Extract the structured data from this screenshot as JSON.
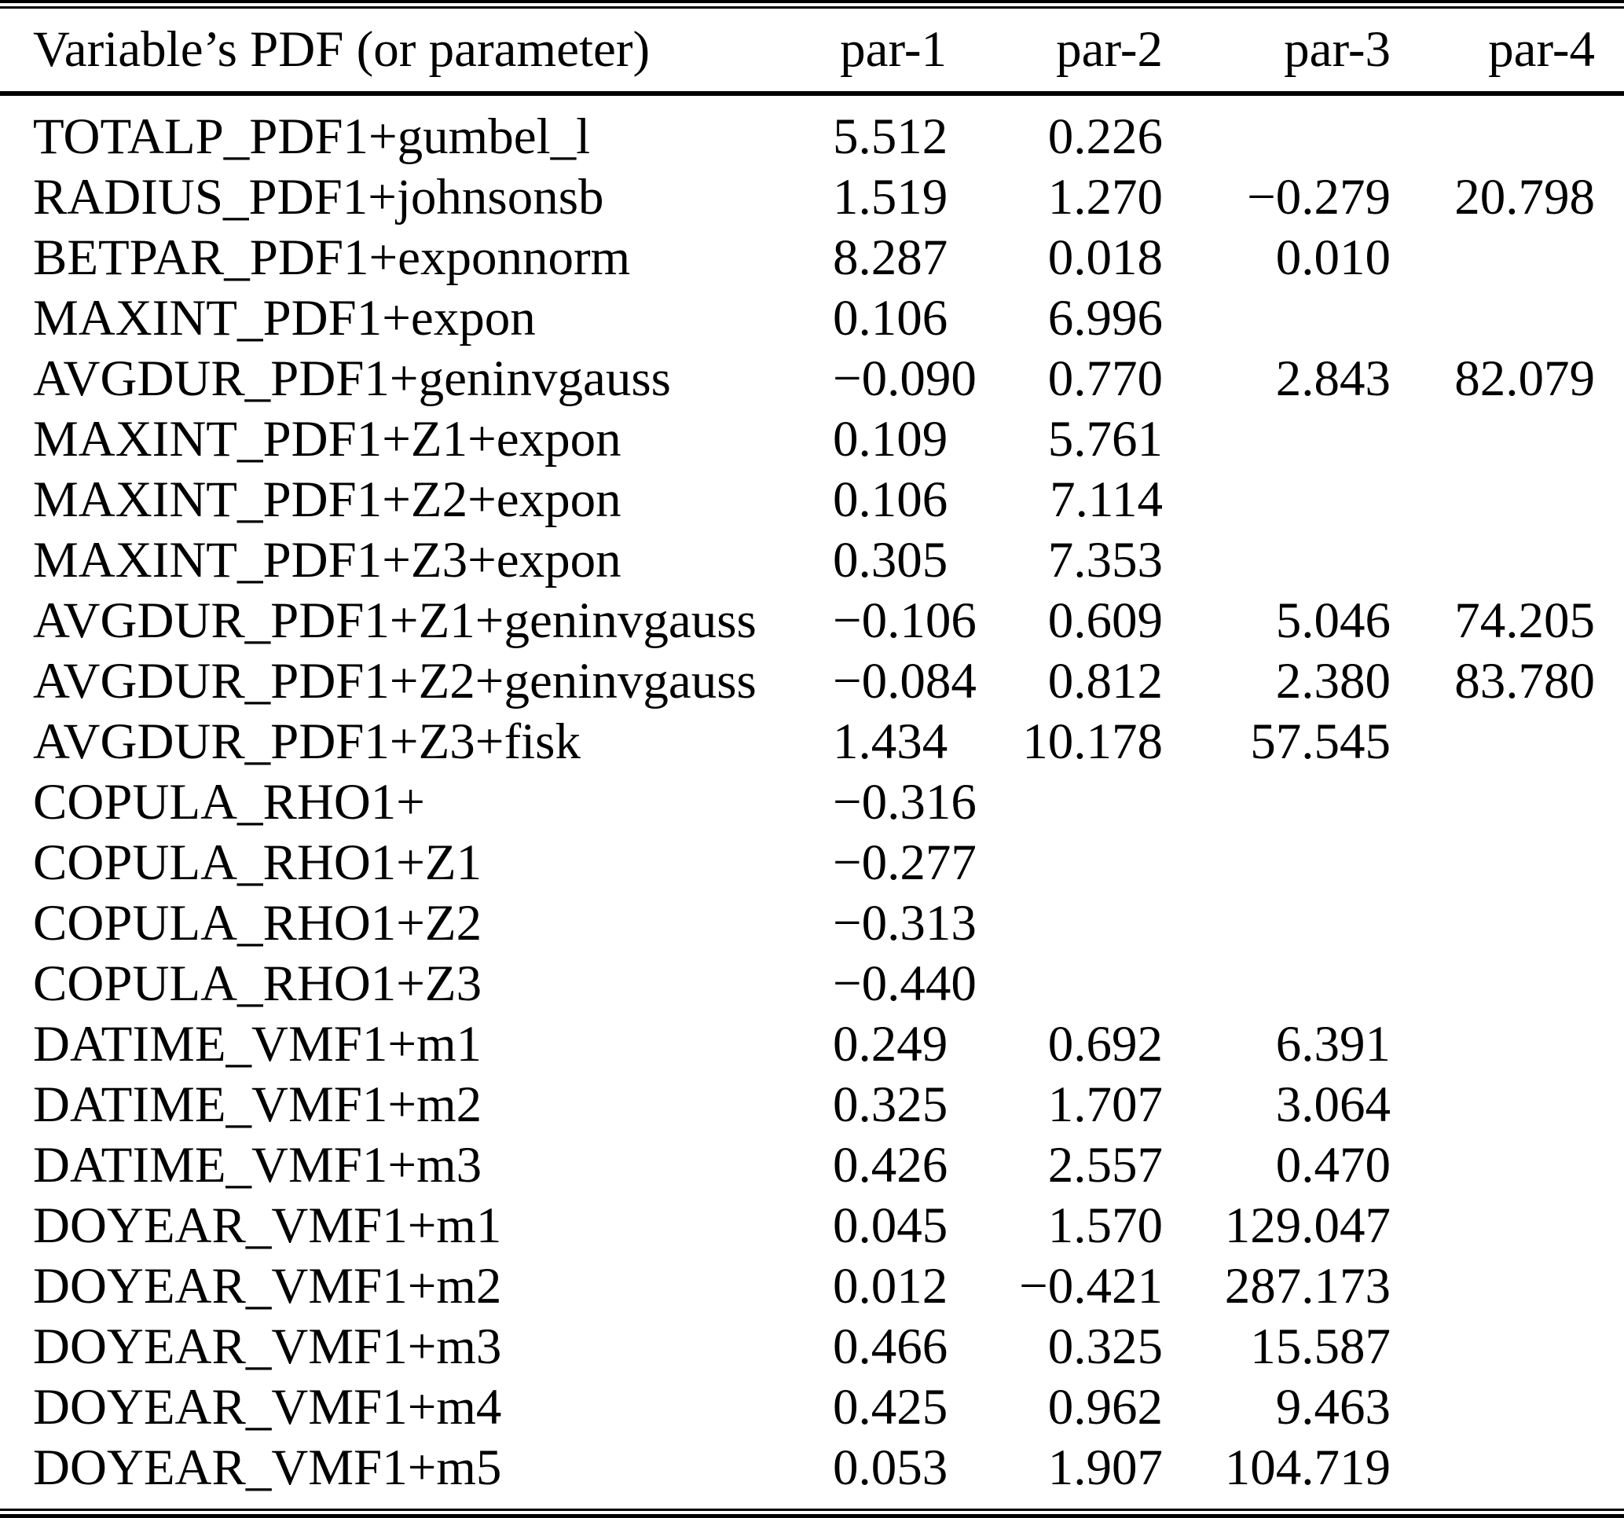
{
  "table": {
    "header": {
      "variable_col": "Variable’s PDF (or parameter)",
      "par1": "par-1",
      "par2": "par-2",
      "par3": "par-3",
      "par4": "par-4"
    },
    "rows": [
      {
        "label": "TOTALP_PDF1+gumbel_l",
        "par1": "5.512",
        "par2": "0.226",
        "par3": "",
        "par4": ""
      },
      {
        "label": "RADIUS_PDF1+johnsonsb",
        "par1": "1.519",
        "par2": "1.270",
        "par3": "−0.279",
        "par4": "20.798"
      },
      {
        "label": "BETPAR_PDF1+exponnorm",
        "par1": "8.287",
        "par2": "0.018",
        "par3": "0.010",
        "par4": ""
      },
      {
        "label": "MAXINT_PDF1+expon",
        "par1": "0.106",
        "par2": "6.996",
        "par3": "",
        "par4": ""
      },
      {
        "label": "AVGDUR_PDF1+geninvgauss",
        "par1": "−0.090",
        "par2": "0.770",
        "par3": "2.843",
        "par4": "82.079"
      },
      {
        "label": "MAXINT_PDF1+Z1+expon",
        "par1": "0.109",
        "par2": "5.761",
        "par3": "",
        "par4": ""
      },
      {
        "label": "MAXINT_PDF1+Z2+expon",
        "par1": "0.106",
        "par2": "7.114",
        "par3": "",
        "par4": ""
      },
      {
        "label": "MAXINT_PDF1+Z3+expon",
        "par1": "0.305",
        "par2": "7.353",
        "par3": "",
        "par4": ""
      },
      {
        "label": "AVGDUR_PDF1+Z1+geninvgauss",
        "par1": "−0.106",
        "par2": "0.609",
        "par3": "5.046",
        "par4": "74.205"
      },
      {
        "label": "AVGDUR_PDF1+Z2+geninvgauss",
        "par1": "−0.084",
        "par2": "0.812",
        "par3": "2.380",
        "par4": "83.780"
      },
      {
        "label": "AVGDUR_PDF1+Z3+fisk",
        "par1": "1.434",
        "par2": "10.178",
        "par3": "57.545",
        "par4": ""
      },
      {
        "label": "COPULA_RHO1+",
        "par1": "−0.316",
        "par2": "",
        "par3": "",
        "par4": ""
      },
      {
        "label": "COPULA_RHO1+Z1",
        "par1": "−0.277",
        "par2": "",
        "par3": "",
        "par4": ""
      },
      {
        "label": "COPULA_RHO1+Z2",
        "par1": "−0.313",
        "par2": "",
        "par3": "",
        "par4": ""
      },
      {
        "label": "COPULA_RHO1+Z3",
        "par1": "−0.440",
        "par2": "",
        "par3": "",
        "par4": ""
      },
      {
        "label": "DATIME_VMF1+m1",
        "par1": "0.249",
        "par2": "0.692",
        "par3": "6.391",
        "par4": ""
      },
      {
        "label": "DATIME_VMF1+m2",
        "par1": "0.325",
        "par2": "1.707",
        "par3": "3.064",
        "par4": ""
      },
      {
        "label": "DATIME_VMF1+m3",
        "par1": "0.426",
        "par2": "2.557",
        "par3": "0.470",
        "par4": ""
      },
      {
        "label": "DOYEAR_VMF1+m1",
        "par1": "0.045",
        "par2": "1.570",
        "par3": "129.047",
        "par4": ""
      },
      {
        "label": "DOYEAR_VMF1+m2",
        "par1": "0.012",
        "par2": "−0.421",
        "par3": "287.173",
        "par4": ""
      },
      {
        "label": "DOYEAR_VMF1+m3",
        "par1": "0.466",
        "par2": "0.325",
        "par3": "15.587",
        "par4": ""
      },
      {
        "label": "DOYEAR_VMF1+m4",
        "par1": "0.425",
        "par2": "0.962",
        "par3": "9.463",
        "par4": ""
      },
      {
        "label": "DOYEAR_VMF1+m5",
        "par1": "0.053",
        "par2": "1.907",
        "par3": "104.719",
        "par4": ""
      }
    ]
  }
}
